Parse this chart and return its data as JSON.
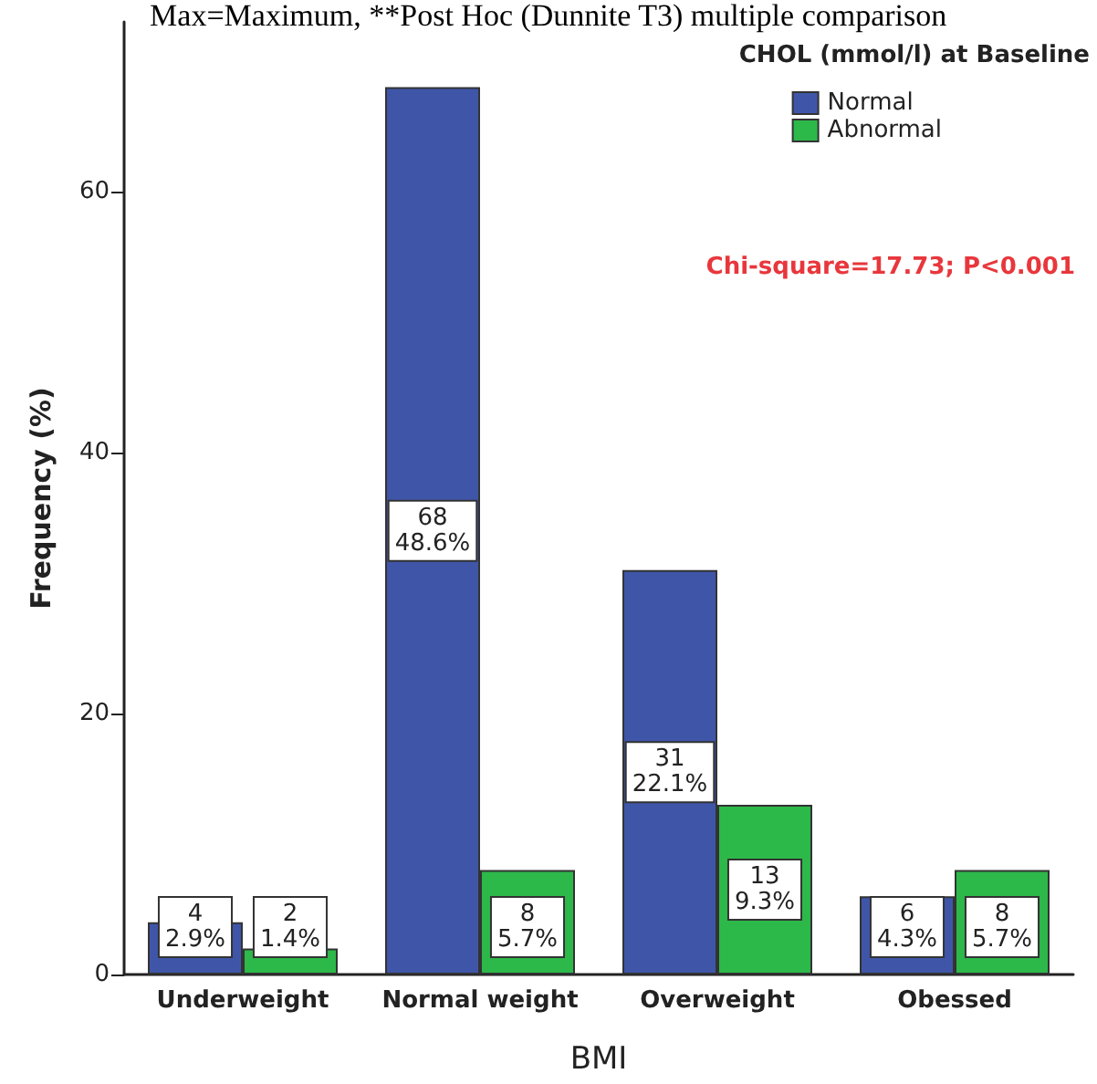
{
  "chart_data": {
    "type": "bar",
    "xlabel": "BMI",
    "ylabel": "Frequency (%)",
    "legend_title": "CHOL (mmol/l) at Baseline",
    "categories": [
      "Underweight",
      "Normal weight",
      "Overweight",
      "Obessed"
    ],
    "series": [
      {
        "name": "Normal",
        "color": "#3f56a8",
        "values": [
          4,
          68,
          31,
          6
        ],
        "value_labels": [
          "4\n2.9%",
          "68\n48.6%",
          "31\n22.1%",
          "6\n4.3%"
        ]
      },
      {
        "name": "Abnormal",
        "color": "#2db84a",
        "values": [
          2,
          8,
          13,
          8
        ],
        "value_labels": [
          "2\n1.4%",
          "8\n5.7%",
          "13\n9.3%",
          "8\n5.7%"
        ]
      }
    ],
    "ylim": [
      0,
      73
    ],
    "yticks": [
      0,
      20,
      40,
      60
    ],
    "grid": false,
    "legend": "top right",
    "annotations": [
      "Max=Maximum, **Post Hoc (Dunnite T3) multiple comparison",
      "Chi-square=17.73; P<0.001"
    ]
  }
}
